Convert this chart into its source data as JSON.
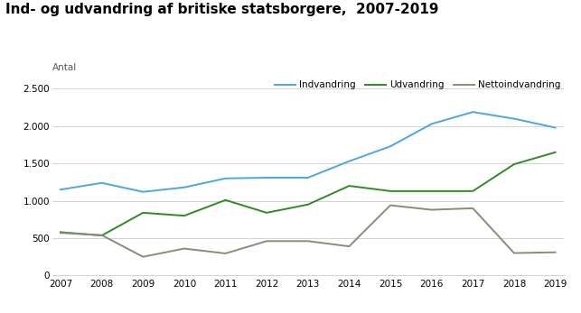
{
  "title": "Ind- og udvandring af britiske statsborgere,  2007-2019",
  "ylabel": "Antal",
  "years": [
    2007,
    2008,
    2009,
    2010,
    2011,
    2012,
    2013,
    2014,
    2015,
    2016,
    2017,
    2018,
    2019
  ],
  "indvandring": [
    1150,
    1240,
    1120,
    1180,
    1300,
    1310,
    1310,
    1530,
    1730,
    2030,
    2190,
    2100,
    1980
  ],
  "udvandring": [
    580,
    535,
    840,
    800,
    1010,
    840,
    950,
    1200,
    1130,
    1130,
    1130,
    1490,
    1650
  ],
  "nettoindvandring": [
    570,
    540,
    250,
    360,
    295,
    460,
    460,
    390,
    940,
    880,
    900,
    300,
    310
  ],
  "color_indvandring": "#4DA6E0",
  "color_udvandring": "#2E8B22",
  "color_netto": "#8B8B7A",
  "legend_labels": [
    "Indvandring",
    "Udvandring",
    "Nettoindvandring"
  ],
  "ylim": [
    0,
    2600
  ],
  "yticks": [
    0,
    500,
    1000,
    1500,
    2000,
    2500
  ],
  "background_color": "#ffffff",
  "grid_color": "#cccccc",
  "title_fontsize": 11,
  "label_fontsize": 7.5,
  "tick_fontsize": 7.5,
  "legend_fontsize": 7.5,
  "line_width": 1.4
}
